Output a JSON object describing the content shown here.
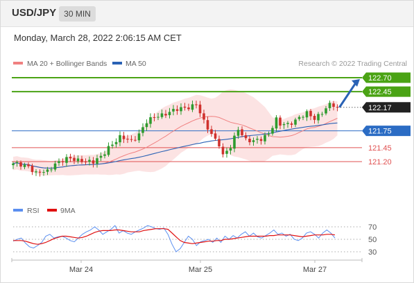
{
  "header": {
    "pair": "USD/JPY",
    "timeframe": "30 MIN"
  },
  "timestamp": "Monday, March 28, 2022 2:06:15 AM CET",
  "legend": {
    "bollinger": "MA 20 + Bollinger Bands",
    "ma50": "MA 50",
    "rsi": "RSI",
    "rsi_ma": "9MA"
  },
  "credit": "Research © 2022 Trading Central",
  "colors": {
    "bull": "#2e9b2e",
    "bear": "#d0312d",
    "ma20": "#f08080",
    "band": "#fcdede",
    "ma50": "#2a62b5",
    "resistance": "#4aa314",
    "support_major": "#2b6cc4",
    "support_minor": "#e05050",
    "price_tag": "#222222",
    "arrow": "#2a62b5",
    "rsi": "#5b8ff0",
    "rsi_ma": "#e01010"
  },
  "chart_data": [
    {
      "type": "candlestick",
      "title": "USD/JPY",
      "timeframe": "30 MIN",
      "ylim": [
        120.9,
        122.78
      ],
      "x_ticks": [
        "Mar 24",
        "Mar 25",
        "Mar 27"
      ],
      "last_price": 122.17,
      "levels": [
        {
          "value": 122.7,
          "label": "122.70",
          "kind": "resistance"
        },
        {
          "value": 122.45,
          "label": "122.45",
          "kind": "resistance"
        },
        {
          "value": 122.17,
          "label": "122.17",
          "kind": "last"
        },
        {
          "value": 121.75,
          "label": "121.75",
          "kind": "support_major"
        },
        {
          "value": 121.45,
          "label": "121.45",
          "kind": "support_minor"
        },
        {
          "value": 121.2,
          "label": "121.20",
          "kind": "support_minor"
        }
      ],
      "series": [
        {
          "name": "MA 20 + Bollinger Bands",
          "indicator": "ma20_bollinger"
        },
        {
          "name": "MA 50",
          "indicator": "ma50"
        }
      ],
      "close_path": [
        [
          0,
          121.15
        ],
        [
          4,
          121.13
        ],
        [
          6,
          120.99
        ],
        [
          9,
          121.02
        ],
        [
          11,
          121.18
        ],
        [
          14,
          121.24
        ],
        [
          18,
          121.23
        ],
        [
          21,
          121.18
        ],
        [
          23,
          121.28
        ],
        [
          25,
          121.47
        ],
        [
          28,
          121.62
        ],
        [
          31,
          121.58
        ],
        [
          33,
          121.7
        ],
        [
          35,
          121.9
        ],
        [
          38,
          122.03
        ],
        [
          42,
          122.1
        ],
        [
          45,
          122.17
        ],
        [
          48,
          122.22
        ],
        [
          50,
          121.9
        ],
        [
          52,
          121.7
        ],
        [
          54,
          121.52
        ],
        [
          55,
          121.3
        ],
        [
          57,
          121.45
        ],
        [
          59,
          121.8
        ],
        [
          61,
          121.6
        ],
        [
          63,
          121.55
        ],
        [
          65,
          121.6
        ],
        [
          67,
          121.72
        ],
        [
          69,
          121.95
        ],
        [
          70,
          121.85
        ],
        [
          72,
          121.86
        ],
        [
          75,
          122.0
        ],
        [
          77,
          122.05
        ],
        [
          79,
          121.96
        ],
        [
          81,
          122.1
        ],
        [
          83,
          122.22
        ],
        [
          85,
          122.17
        ]
      ],
      "projection": {
        "from": 122.17,
        "to": 122.7
      }
    },
    {
      "type": "line",
      "title": "RSI",
      "ylim": [
        20,
        75
      ],
      "y_ticks": [
        70,
        50,
        30
      ],
      "series": [
        {
          "name": "RSI",
          "values": [
            47,
            50,
            52,
            44,
            38,
            36,
            40,
            45,
            55,
            58,
            52,
            54,
            55,
            52,
            48,
            46,
            52,
            58,
            62,
            65,
            70,
            65,
            58,
            62,
            66,
            72,
            60,
            64,
            60,
            58,
            62,
            65,
            68,
            72,
            70,
            67,
            66,
            68,
            58,
            42,
            30,
            35,
            45,
            55,
            50,
            40,
            46,
            48,
            50,
            45,
            52,
            45,
            55,
            50,
            56,
            52,
            58,
            62,
            55,
            60,
            54,
            52,
            56,
            60,
            65,
            58,
            60,
            55,
            58,
            50,
            48,
            52,
            60,
            62,
            58,
            52,
            60,
            65,
            60,
            52
          ]
        },
        {
          "name": "9MA",
          "values": [
            48,
            48,
            48,
            47,
            45,
            43,
            42,
            43,
            45,
            48,
            51,
            53,
            55,
            55,
            54,
            53,
            52,
            53,
            55,
            58,
            61,
            63,
            64,
            64,
            64,
            65,
            65,
            64,
            63,
            62,
            62,
            62,
            64,
            65,
            66,
            67,
            67,
            67,
            66,
            60,
            54,
            48,
            45,
            44,
            43,
            44,
            45,
            46,
            47,
            47,
            48,
            48,
            50,
            50,
            51,
            52,
            53,
            54,
            55,
            55,
            55,
            55,
            55,
            56,
            56,
            57,
            57,
            57,
            57,
            56,
            55,
            54,
            55,
            56,
            57,
            57,
            57,
            58,
            58,
            57
          ]
        }
      ]
    }
  ]
}
